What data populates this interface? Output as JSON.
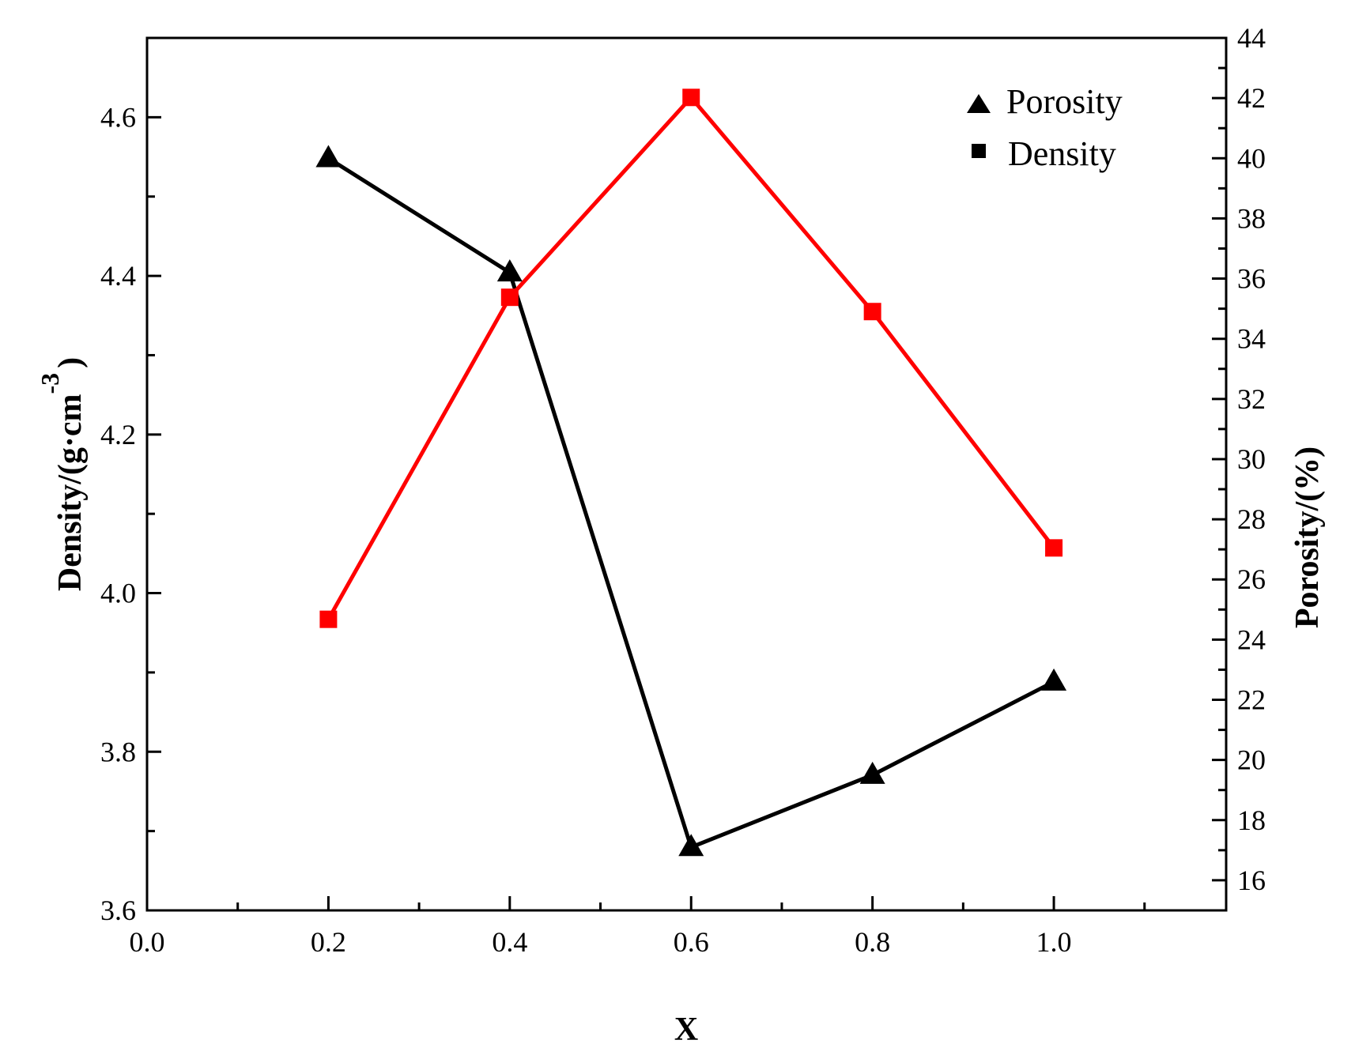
{
  "chart_data": {
    "type": "line",
    "title": "",
    "xlabel": "X",
    "ylabel_left": "Density/(g·cm",
    "ylabel_left_superscript": "-3",
    "ylabel_left_close": ")",
    "ylabel_right": "Porosity/(%)",
    "x": [
      0.2,
      0.4,
      0.6,
      0.8,
      1.0
    ],
    "xlim": [
      0.0,
      1.19
    ],
    "ylim_left": [
      3.6,
      4.7
    ],
    "ylim_right": [
      15,
      44
    ],
    "x_ticks": [
      "0.0",
      "0.2",
      "0.4",
      "0.6",
      "0.8",
      "1.0"
    ],
    "left_ticks": [
      "3.6",
      "3.8",
      "4.0",
      "4.2",
      "4.4",
      "4.6"
    ],
    "right_ticks": [
      "16",
      "18",
      "20",
      "22",
      "24",
      "26",
      "28",
      "30",
      "32",
      "34",
      "36",
      "38",
      "40",
      "42",
      "44"
    ],
    "series": [
      {
        "name": "Porosity",
        "axis": "right",
        "marker": "triangle",
        "color": "#000000",
        "values": [
          40.0,
          36.2,
          17.1,
          19.5,
          22.6
        ]
      },
      {
        "name": "Density",
        "axis": "left",
        "marker": "square",
        "color": "#ff0000",
        "values": [
          3.967,
          4.373,
          4.625,
          4.355,
          4.057
        ]
      }
    ],
    "legend": {
      "position": "top-right",
      "entries": [
        {
          "label": "Porosity",
          "marker": "triangle"
        },
        {
          "label": "Density",
          "marker": "square"
        }
      ]
    },
    "grid": false
  }
}
